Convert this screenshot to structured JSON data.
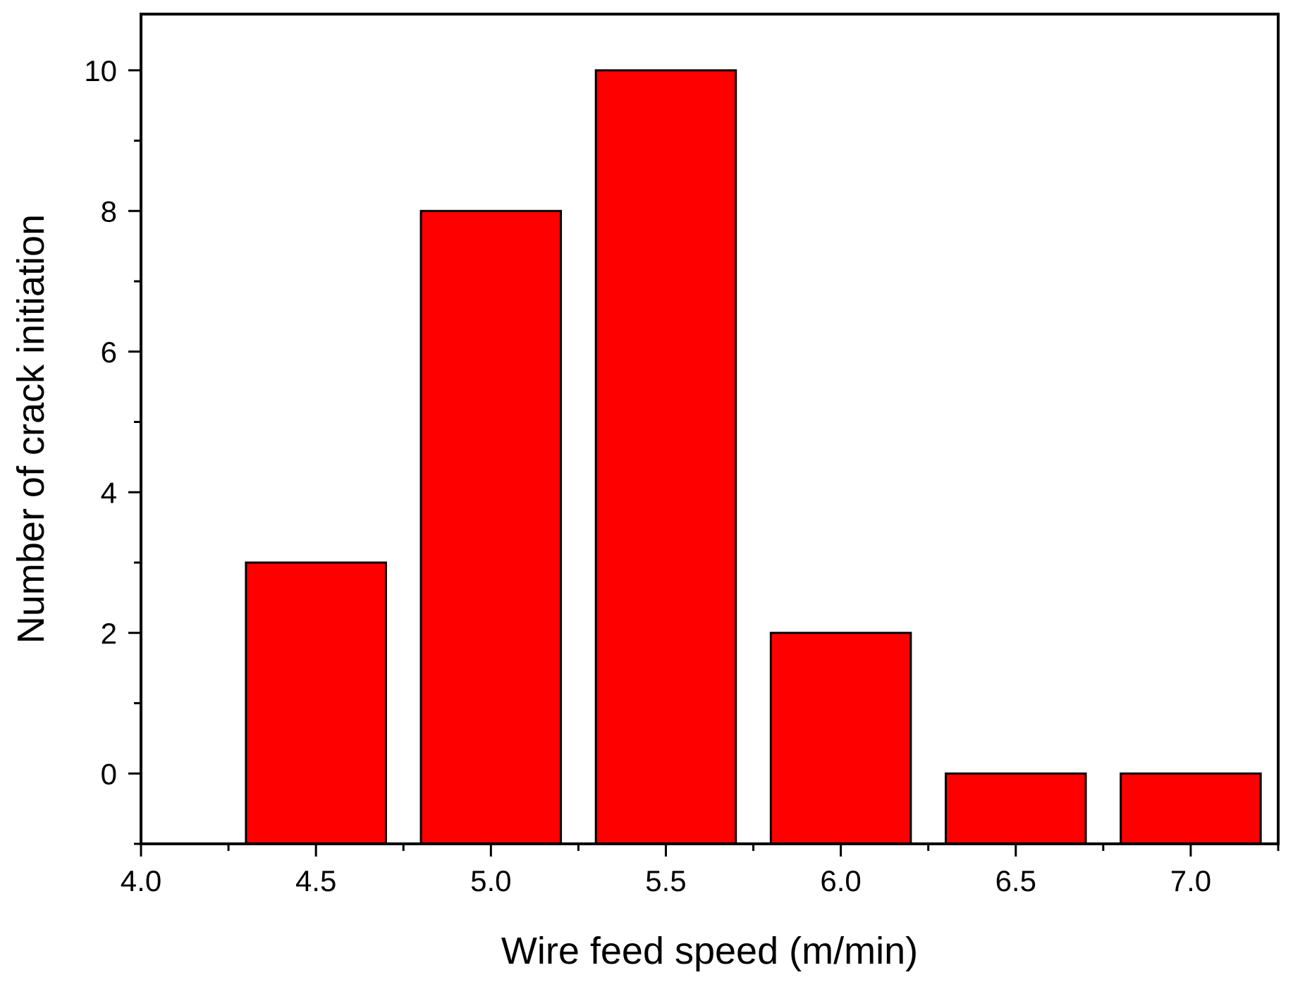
{
  "chart_data": {
    "type": "bar",
    "title": "",
    "xlabel": "Wire feed speed (m/min)",
    "ylabel": "Number of crack initiation",
    "x": [
      4.5,
      5.0,
      5.5,
      6.0,
      6.5,
      7.0
    ],
    "values": [
      3,
      8,
      10,
      2,
      0,
      0
    ],
    "bar_width": 0.4,
    "xlim": [
      4.0,
      7.25
    ],
    "ylim": [
      -1,
      10.8
    ],
    "xticks": [
      4.0,
      4.5,
      5.0,
      5.5,
      6.0,
      6.5,
      7.0
    ],
    "xtick_labels": [
      "4.0",
      "4.5",
      "5.0",
      "5.5",
      "6.0",
      "6.5",
      "7.0"
    ],
    "xminor_ticks": [
      4.25,
      4.75,
      5.25,
      5.75,
      6.25,
      6.75,
      7.25
    ],
    "yticks": [
      0,
      2,
      4,
      6,
      8,
      10
    ],
    "ytick_labels": [
      "0",
      "2",
      "4",
      "6",
      "8",
      "10"
    ],
    "yminor_ticks": [
      -1,
      1,
      3,
      5,
      7,
      9
    ],
    "grid": false,
    "legend": "none",
    "colors": {
      "bar_fill": "#ff0000",
      "bar_stroke": "#000000",
      "axis": "#000000"
    }
  }
}
